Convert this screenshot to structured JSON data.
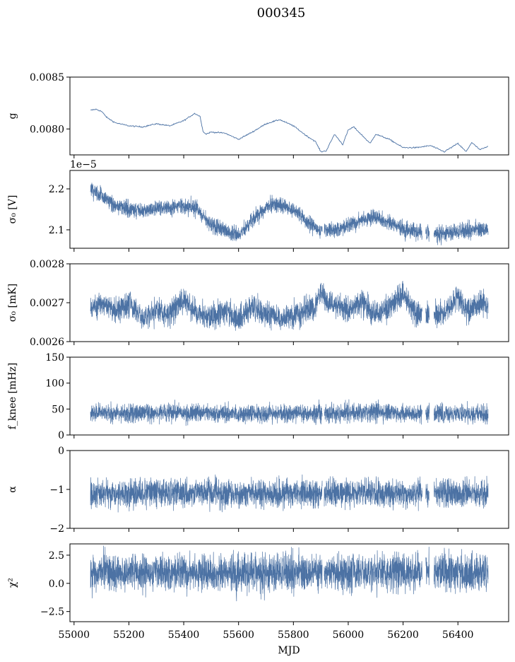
{
  "figure": {
    "title": "000345",
    "xlabel": "MJD"
  },
  "colors": {
    "series": "#4c72a4",
    "axis": "#000000",
    "background": "#ffffff"
  },
  "chart_data": [
    {
      "type": "line",
      "ylabel": "g",
      "ylim": [
        0.00775,
        0.0085
      ],
      "yticks": [
        0.008,
        0.0085
      ],
      "ytick_labels": [
        "0.0080",
        "0.0085"
      ],
      "offset_text": "",
      "xlim": [
        54985,
        56585
      ],
      "xticks": [
        55000,
        55200,
        55400,
        55600,
        55800,
        56000,
        56200,
        56400
      ],
      "xtick_labels": [],
      "style": "thin-line",
      "series": [
        {
          "x": [
            55060,
            55080,
            55100,
            55120,
            55150,
            55200,
            55250,
            55300,
            55350,
            55400,
            55440,
            55460,
            55470,
            55480,
            55500,
            55550,
            55600,
            55650,
            55700,
            55750,
            55800,
            55850,
            55880,
            55900,
            55920,
            55950,
            55980,
            56000,
            56020,
            56050,
            56080,
            56100,
            56150,
            56200,
            56250,
            56300,
            56350,
            56400,
            56430,
            56450,
            56480,
            56510
          ],
          "y": [
            0.00818,
            0.00819,
            0.00817,
            0.00811,
            0.00806,
            0.00803,
            0.00802,
            0.00805,
            0.00803,
            0.00808,
            0.00815,
            0.00812,
            0.00798,
            0.00795,
            0.00797,
            0.00796,
            0.0079,
            0.00797,
            0.00805,
            0.00809,
            0.00803,
            0.00793,
            0.00788,
            0.00778,
            0.00779,
            0.00795,
            0.00785,
            0.00799,
            0.00802,
            0.00794,
            0.00786,
            0.00795,
            0.0079,
            0.00782,
            0.00782,
            0.00784,
            0.00778,
            0.00786,
            0.00778,
            0.00787,
            0.0078,
            0.00783
          ]
        }
      ]
    },
    {
      "type": "band",
      "ylabel": "σ₀ [V]",
      "ylim": [
        2.055e-05,
        2.245e-05
      ],
      "yticks": [
        2.1e-05,
        2.2e-05
      ],
      "ytick_labels": [
        "2.1",
        "2.2"
      ],
      "offset_text": "1e−5",
      "xlim": [
        54985,
        56585
      ],
      "xticks": [
        55000,
        55200,
        55400,
        55600,
        55800,
        56000,
        56200,
        56400
      ],
      "xtick_labels": [],
      "style": "dense",
      "center_spread": 1.2e-07,
      "gaps": [
        [
          55905,
          55912
        ],
        [
          56270,
          56282
        ],
        [
          56296,
          56312
        ]
      ],
      "series": [
        {
          "x": [
            55060,
            55100,
            55150,
            55200,
            55250,
            55300,
            55350,
            55400,
            55450,
            55500,
            55550,
            55600,
            55650,
            55700,
            55750,
            55800,
            55850,
            55900,
            55950,
            56000,
            56050,
            56100,
            56150,
            56200,
            56250,
            56300,
            56350,
            56400,
            56450,
            56510
          ],
          "y": [
            2.197e-05,
            2.185e-05,
            2.16e-05,
            2.15e-05,
            2.145e-05,
            2.152e-05,
            2.155e-05,
            2.16e-05,
            2.15e-05,
            2.11e-05,
            2.1e-05,
            2.085e-05,
            2.125e-05,
            2.155e-05,
            2.163e-05,
            2.15e-05,
            2.12e-05,
            2.098e-05,
            2.1e-05,
            2.11e-05,
            2.125e-05,
            2.132e-05,
            2.118e-05,
            2.102e-05,
            2.095e-05,
            2.09e-05,
            2.092e-05,
            2.095e-05,
            2.1e-05,
            2.103e-05
          ]
        }
      ]
    },
    {
      "type": "band",
      "ylabel": "σ₀ [mK]",
      "ylim": [
        0.0026,
        0.0028
      ],
      "yticks": [
        0.0026,
        0.0027,
        0.0028
      ],
      "ytick_labels": [
        "0.0026",
        "0.0027",
        "0.0028"
      ],
      "offset_text": "",
      "xlim": [
        54985,
        56585
      ],
      "xticks": [
        55000,
        55200,
        55400,
        55600,
        55800,
        56000,
        56200,
        56400
      ],
      "xtick_labels": [],
      "style": "dense",
      "center_spread": 2e-05,
      "gaps": [
        [
          56270,
          56282
        ],
        [
          56296,
          56312
        ]
      ],
      "series": [
        {
          "x": [
            55060,
            55100,
            55150,
            55200,
            55250,
            55300,
            55350,
            55400,
            55450,
            55500,
            55550,
            55600,
            55650,
            55700,
            55750,
            55800,
            55850,
            55880,
            55900,
            55920,
            55950,
            56000,
            56050,
            56100,
            56150,
            56200,
            56250,
            56300,
            56350,
            56400,
            56430,
            56450,
            56480,
            56510
          ],
          "y": [
            0.00268,
            0.0027,
            0.00268,
            0.0027,
            0.00266,
            0.00268,
            0.00267,
            0.00271,
            0.00267,
            0.00266,
            0.00268,
            0.00266,
            0.00269,
            0.00267,
            0.00266,
            0.00267,
            0.00268,
            0.00269,
            0.00273,
            0.0027,
            0.0027,
            0.00268,
            0.0027,
            0.00267,
            0.00269,
            0.00272,
            0.00267,
            0.00267,
            0.00267,
            0.00272,
            0.00268,
            0.00268,
            0.0027,
            0.00269
          ]
        }
      ]
    },
    {
      "type": "band",
      "ylabel": "f_knee [mHz]",
      "ylim": [
        0,
        150
      ],
      "yticks": [
        0,
        50,
        100,
        150
      ],
      "ytick_labels": [
        "0",
        "50",
        "100",
        "150"
      ],
      "offset_text": "",
      "xlim": [
        54985,
        56585
      ],
      "xticks": [
        55000,
        55200,
        55400,
        55600,
        55800,
        56000,
        56200,
        56400
      ],
      "xtick_labels": [],
      "style": "noise",
      "center_spread": 14,
      "gaps": [
        [
          55905,
          55912
        ],
        [
          56270,
          56282
        ],
        [
          56296,
          56312
        ]
      ],
      "series": [
        {
          "x": [
            55060,
            55200,
            55400,
            55600,
            55800,
            56000,
            56100,
            56200,
            56300,
            56400,
            56510
          ],
          "y": [
            42,
            42,
            43,
            40,
            41,
            42,
            45,
            41,
            40,
            41,
            40
          ]
        }
      ]
    },
    {
      "type": "band",
      "ylabel": "α",
      "ylim": [
        -2,
        0
      ],
      "yticks": [
        -2,
        -1,
        0
      ],
      "ytick_labels": [
        "−2",
        "−1",
        "0"
      ],
      "offset_text": "",
      "xlim": [
        54985,
        56585
      ],
      "xticks": [
        55000,
        55200,
        55400,
        55600,
        55800,
        56000,
        56200,
        56400
      ],
      "xtick_labels": [],
      "style": "noise",
      "center_spread": 0.28,
      "gaps": [
        [
          55905,
          55912
        ],
        [
          56270,
          56282
        ],
        [
          56296,
          56312
        ]
      ],
      "series": [
        {
          "x": [
            55060,
            55200,
            55400,
            55600,
            55800,
            56000,
            56200,
            56400,
            56510
          ],
          "y": [
            -1.12,
            -1.1,
            -1.08,
            -1.12,
            -1.1,
            -1.08,
            -1.1,
            -1.1,
            -1.1
          ]
        }
      ]
    },
    {
      "type": "band",
      "ylabel": "χ²",
      "ylim": [
        -3.4,
        3.5
      ],
      "yticks": [
        -2.5,
        0,
        2.5
      ],
      "ytick_labels": [
        "−2.5",
        "0.0",
        "2.5"
      ],
      "offset_text": "",
      "xlim": [
        54985,
        56585
      ],
      "xticks": [
        55000,
        55200,
        55400,
        55600,
        55800,
        56000,
        56200,
        56400
      ],
      "xtick_labels": [
        "55000",
        "55200",
        "55400",
        "55600",
        "55800",
        "56000",
        "56200",
        "56400"
      ],
      "style": "noise",
      "center_spread": 1.3,
      "gaps": [
        [
          55905,
          55912
        ],
        [
          56270,
          56282
        ],
        [
          56296,
          56312
        ]
      ],
      "series": [
        {
          "x": [
            55060,
            55200,
            55400,
            55600,
            55800,
            56000,
            56200,
            56400,
            56510
          ],
          "y": [
            1.0,
            1.0,
            1.0,
            0.9,
            1.0,
            1.0,
            1.0,
            1.0,
            1.0
          ]
        }
      ]
    }
  ]
}
